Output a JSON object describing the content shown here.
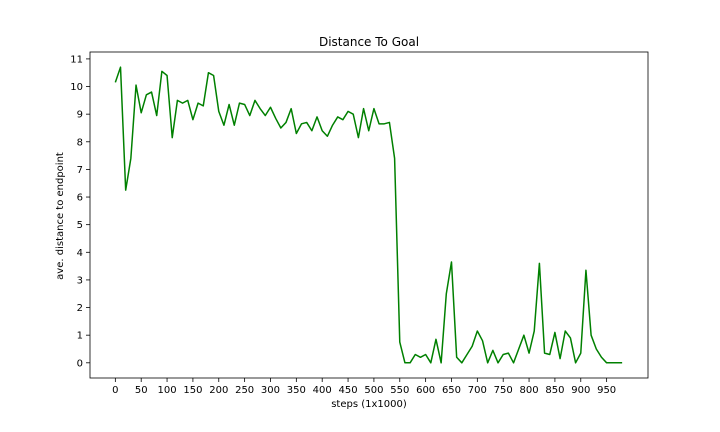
{
  "chart_data": {
    "type": "line",
    "title": "Distance To Goal",
    "xlabel": "steps (1x1000)",
    "ylabel": "ave. distance to endpoint",
    "xlim": [
      -49,
      1030
    ],
    "ylim": [
      -0.55,
      11.25
    ],
    "xticks": [
      0,
      50,
      100,
      150,
      200,
      250,
      300,
      350,
      400,
      450,
      500,
      550,
      600,
      650,
      700,
      750,
      800,
      850,
      900,
      950
    ],
    "yticks": [
      0,
      1,
      2,
      3,
      4,
      5,
      6,
      7,
      8,
      9,
      10,
      11
    ],
    "grid": false,
    "legend": "none",
    "series": [
      {
        "color": "#008000",
        "x": [
          0,
          10,
          20,
          30,
          40,
          50,
          60,
          70,
          80,
          90,
          100,
          110,
          120,
          130,
          140,
          150,
          160,
          170,
          180,
          190,
          200,
          210,
          220,
          230,
          240,
          250,
          260,
          270,
          280,
          290,
          300,
          310,
          320,
          330,
          340,
          350,
          360,
          370,
          380,
          390,
          400,
          410,
          420,
          430,
          440,
          450,
          460,
          470,
          480,
          490,
          500,
          510,
          520,
          530,
          540,
          550,
          560,
          570,
          580,
          590,
          600,
          610,
          620,
          630,
          640,
          650,
          660,
          670,
          680,
          690,
          700,
          710,
          720,
          730,
          740,
          750,
          760,
          770,
          780,
          790,
          800,
          810,
          820,
          830,
          840,
          850,
          860,
          870,
          880,
          890,
          900,
          910,
          920,
          930,
          940,
          950,
          960,
          970,
          980
        ],
        "values": [
          10.15,
          10.7,
          6.25,
          7.4,
          10.05,
          9.05,
          9.7,
          9.8,
          8.95,
          10.55,
          10.4,
          8.15,
          9.5,
          9.4,
          9.5,
          8.8,
          9.4,
          9.3,
          10.5,
          10.4,
          9.1,
          8.6,
          9.35,
          8.6,
          9.4,
          9.35,
          8.95,
          9.5,
          9.2,
          8.95,
          9.25,
          8.85,
          8.5,
          8.7,
          9.2,
          8.3,
          8.65,
          8.7,
          8.4,
          8.9,
          8.4,
          8.2,
          8.6,
          8.9,
          8.8,
          9.1,
          9.0,
          8.15,
          9.2,
          8.4,
          9.2,
          8.65,
          8.65,
          8.7,
          7.4,
          0.75,
          0.0,
          0.0,
          0.3,
          0.2,
          0.3,
          0.0,
          0.85,
          0.0,
          2.5,
          3.65,
          0.2,
          0.0,
          0.3,
          0.6,
          1.15,
          0.8,
          0.0,
          0.45,
          0.0,
          0.3,
          0.35,
          0.0,
          0.5,
          1.0,
          0.35,
          1.15,
          3.6,
          0.35,
          0.3,
          1.1,
          0.15,
          1.15,
          0.9,
          0.0,
          0.35,
          3.35,
          1.0,
          0.5,
          0.2,
          0.0,
          0.0,
          0.0,
          0.0
        ]
      }
    ]
  }
}
